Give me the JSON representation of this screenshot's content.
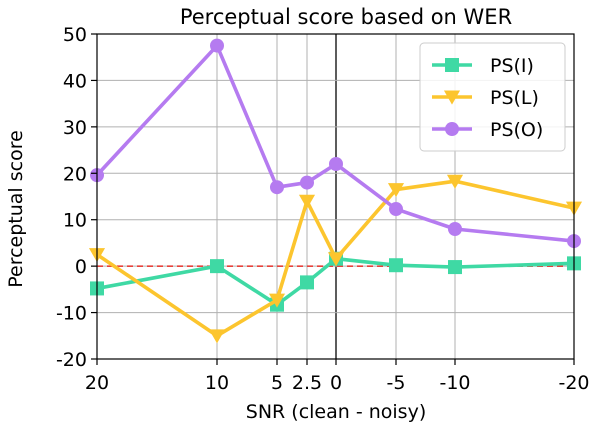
{
  "chart_data": {
    "type": "line",
    "title": "Perceptual score based on WER",
    "xlabel": "SNR (clean - noisy)",
    "ylabel": "Perceptual score",
    "x_ticks": [
      "20",
      "10",
      "5",
      "2.5",
      "0",
      "-5",
      "-10",
      "-20"
    ],
    "ylim": [
      -20,
      50
    ],
    "y_ticks": [
      -20,
      -10,
      0,
      10,
      20,
      30,
      40,
      50
    ],
    "grid": true,
    "legend_position": "top-right",
    "reference_line": {
      "y": 0,
      "color": "#e8413a",
      "style": "dashed"
    },
    "vertical_line_at": "0",
    "series": [
      {
        "name": "PS(I)",
        "marker": "square",
        "color": "#3fd9a4",
        "values": [
          -4.8,
          0.0,
          -8.3,
          -3.5,
          1.6,
          0.2,
          -0.2,
          0.6
        ]
      },
      {
        "name": "PS(L)",
        "marker": "triangle-down",
        "color": "#fcc52e",
        "values": [
          2.5,
          -15.0,
          -7.3,
          14.0,
          1.6,
          16.5,
          18.3,
          12.5
        ]
      },
      {
        "name": "PS(O)",
        "marker": "circle",
        "color": "#b57bf0",
        "values": [
          19.6,
          47.5,
          17.0,
          18.0,
          22.0,
          12.3,
          8.0,
          5.4
        ]
      }
    ]
  }
}
